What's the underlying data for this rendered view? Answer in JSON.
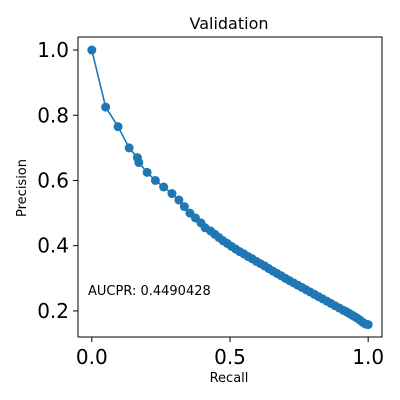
{
  "chart_data": {
    "type": "line",
    "title": "Validation",
    "xlabel": "Recall",
    "ylabel": "Precision",
    "xlim": [
      -0.05,
      1.05
    ],
    "ylim": [
      0.12,
      1.04
    ],
    "xticks": [
      0.0,
      0.5,
      1.0
    ],
    "xtick_labels": [
      "0.0",
      "0.5",
      "1.0"
    ],
    "yticks": [
      0.2,
      0.4,
      0.6,
      0.8,
      1.0
    ],
    "ytick_labels": [
      "0.2",
      "0.4",
      "0.6",
      "0.8",
      "1.0"
    ],
    "grid": false,
    "annotation": "AUCPR: 0.4490428",
    "series": [
      {
        "color": "#1f77b4",
        "markers": true,
        "x": [
          0.0,
          0.05,
          0.095,
          0.135,
          0.165,
          0.17,
          0.2,
          0.23,
          0.26,
          0.29,
          0.315,
          0.335,
          0.355,
          0.375,
          0.395,
          0.41,
          0.43,
          0.445,
          0.46,
          0.475,
          0.49,
          0.505,
          0.52,
          0.535,
          0.55,
          0.565,
          0.58,
          0.595,
          0.61,
          0.625,
          0.64,
          0.655,
          0.67,
          0.685,
          0.7,
          0.715,
          0.73,
          0.745,
          0.76,
          0.775,
          0.79,
          0.805,
          0.82,
          0.835,
          0.85,
          0.865,
          0.88,
          0.895,
          0.91,
          0.92,
          0.93,
          0.94,
          0.95,
          0.96,
          0.97,
          0.98,
          0.99,
          1.0
        ],
        "y": [
          1.0,
          0.825,
          0.765,
          0.7,
          0.67,
          0.655,
          0.625,
          0.6,
          0.58,
          0.56,
          0.54,
          0.52,
          0.5,
          0.485,
          0.47,
          0.455,
          0.445,
          0.435,
          0.425,
          0.415,
          0.407,
          0.398,
          0.39,
          0.382,
          0.375,
          0.367,
          0.36,
          0.352,
          0.345,
          0.338,
          0.33,
          0.322,
          0.315,
          0.308,
          0.3,
          0.293,
          0.286,
          0.279,
          0.272,
          0.265,
          0.258,
          0.251,
          0.244,
          0.237,
          0.23,
          0.223,
          0.216,
          0.209,
          0.202,
          0.198,
          0.193,
          0.188,
          0.183,
          0.178,
          0.172,
          0.165,
          0.16,
          0.158
        ]
      }
    ]
  }
}
